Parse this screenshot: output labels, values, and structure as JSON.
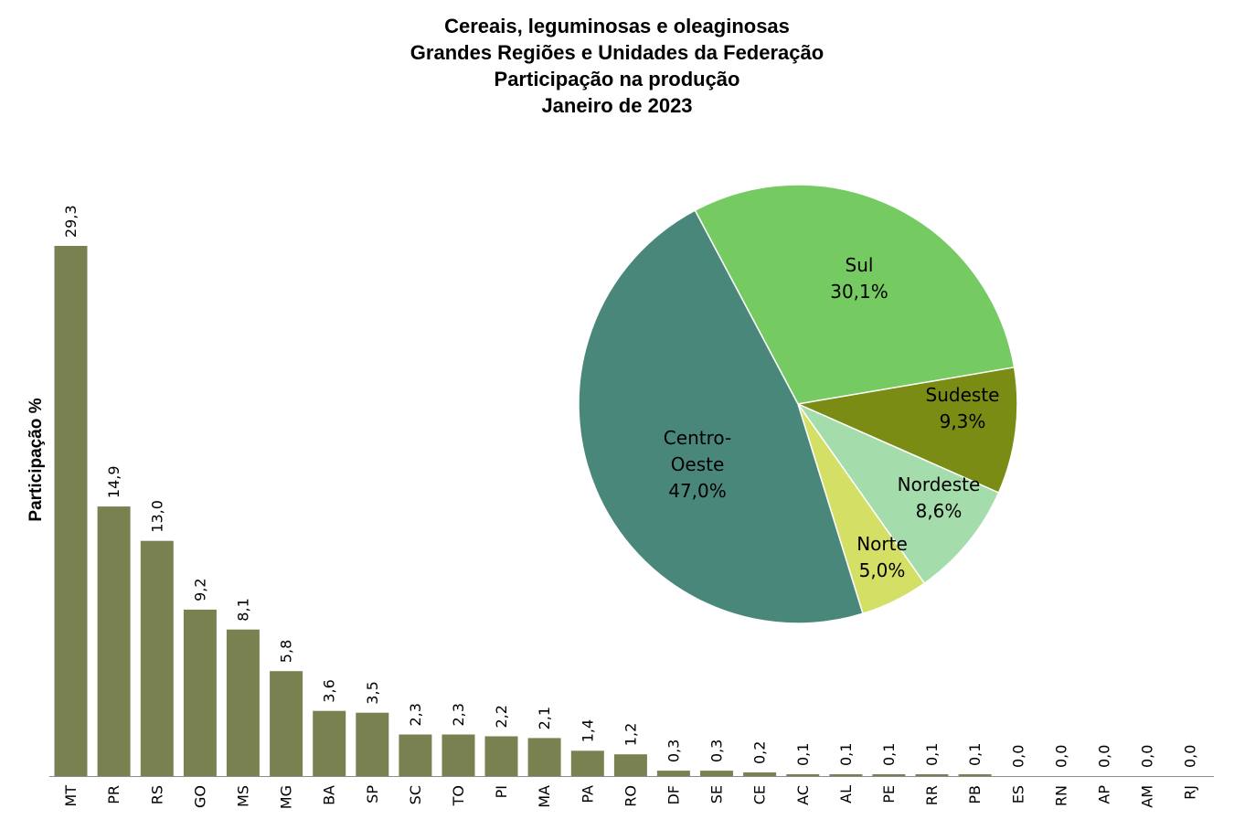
{
  "chart_data": [
    {
      "type": "bar",
      "ylabel": "Participação %",
      "categories": [
        "MT",
        "PR",
        "RS",
        "GO",
        "MS",
        "MG",
        "BA",
        "SP",
        "SC",
        "TO",
        "PI",
        "MA",
        "PA",
        "RO",
        "DF",
        "SE",
        "CE",
        "AC",
        "AL",
        "PE",
        "RR",
        "PB",
        "ES",
        "RN",
        "AP",
        "AM",
        "RJ"
      ],
      "values": [
        29.3,
        14.9,
        13.0,
        9.2,
        8.1,
        5.8,
        3.6,
        3.5,
        2.3,
        2.3,
        2.2,
        2.1,
        1.4,
        1.2,
        0.3,
        0.3,
        0.2,
        0.1,
        0.1,
        0.1,
        0.1,
        0.1,
        0.0,
        0.0,
        0.0,
        0.0,
        0.0
      ],
      "labels": [
        "29,3",
        "14,9",
        "13,0",
        "9,2",
        "8,1",
        "5,8",
        "3,6",
        "3,5",
        "2,3",
        "2,3",
        "2,2",
        "2,1",
        "1,4",
        "1,2",
        "0,3",
        "0,3",
        "0,2",
        "0,1",
        "0,1",
        "0,1",
        "0,1",
        "0,1",
        "0,0",
        "0,0",
        "0,0",
        "0,0",
        "0,0"
      ],
      "ylim": [
        0,
        29.3
      ],
      "grid": false,
      "color": "#7a8150"
    },
    {
      "type": "pie",
      "slices": [
        {
          "name": "Sul",
          "label_lines": [
            "Sul",
            "30,1%"
          ],
          "value": 30.1,
          "color": "#75cb61"
        },
        {
          "name": "Sudeste",
          "label_lines": [
            "Sudeste",
            "9,3%"
          ],
          "value": 9.3,
          "color": "#7a8c14"
        },
        {
          "name": "Nordeste",
          "label_lines": [
            "Nordeste",
            "8,6%"
          ],
          "value": 8.6,
          "color": "#a4dcab"
        },
        {
          "name": "Norte",
          "label_lines": [
            "Norte",
            "5,0%"
          ],
          "value": 5.0,
          "color": "#d4df66"
        },
        {
          "name": "Centro-Oeste",
          "label_lines": [
            "Centro-",
            "Oeste",
            "47,0%"
          ],
          "value": 47.0,
          "color": "#4a877b"
        }
      ]
    }
  ],
  "title_lines": [
    "Cereais, leguminosas e oleaginosas",
    "Grandes Regiões e Unidades da Federação",
    "Participação na produção",
    "Janeiro de 2023"
  ]
}
